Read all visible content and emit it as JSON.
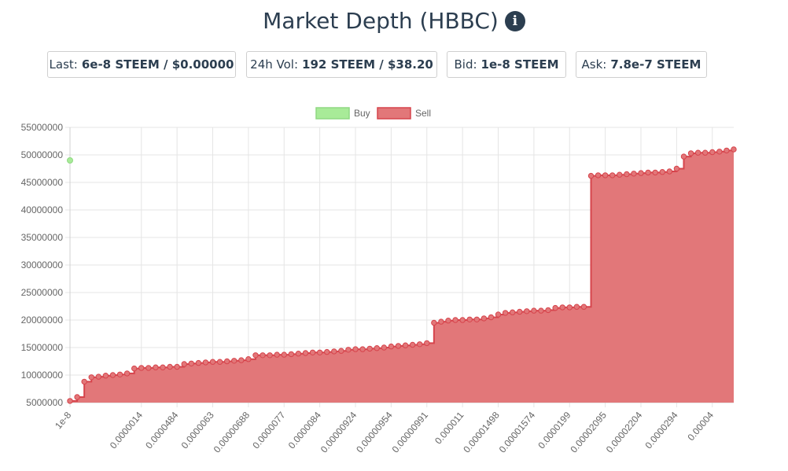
{
  "header": {
    "title": "Market Depth (HBBC)",
    "info_icon": "info-circle-icon"
  },
  "stats": {
    "last": {
      "label": "Last:",
      "value": "6e-8 STEEM / $0.00000"
    },
    "vol": {
      "label": "24h Vol:",
      "value": "192 STEEM / $38.20"
    },
    "bid": {
      "label": "Bid:",
      "value": "1e-8 STEEM"
    },
    "ask": {
      "label": "Ask:",
      "value": "7.8e-7 STEEM"
    }
  },
  "colors": {
    "buy_fill": "#a8eb98",
    "buy_stroke": "#8fd882",
    "sell_fill": "#e27779",
    "sell_stroke": "#d6444c",
    "title": "#2c3e50",
    "grid": "#e5e5e5"
  },
  "chart_data": {
    "type": "area",
    "step": true,
    "legend": {
      "position": "top",
      "entries": [
        "Buy",
        "Sell"
      ]
    },
    "grid": true,
    "ylim": [
      5000000,
      55000000
    ],
    "y_ticks": [
      "55000000",
      "50000000",
      "45000000",
      "40000000",
      "35000000",
      "30000000",
      "25000000",
      "20000000",
      "15000000",
      "10000000",
      "5000000"
    ],
    "x_tick_labels": [
      "1e-8",
      "0.0000014",
      "0.0000484",
      "0.0000063",
      "0.00000688",
      "0.0000077",
      "0.0000084",
      "0.00000924",
      "0.00000954",
      "0.00000991",
      "0.000011",
      "0.00001498",
      "0.00001574",
      "0.0000199",
      "0.00002095",
      "0.00002204",
      "0.0000294",
      "0.00004"
    ],
    "x_tick_index": [
      0,
      10,
      15,
      20,
      25,
      30,
      35,
      40,
      45,
      50,
      55,
      60,
      65,
      70,
      75,
      80,
      85,
      90
    ],
    "series": [
      {
        "name": "Buy",
        "points": [
          [
            0,
            49000000
          ]
        ]
      },
      {
        "name": "Sell",
        "values": [
          5300000,
          6000000,
          8800000,
          9600000,
          9700000,
          9900000,
          10000000,
          10100000,
          10300000,
          11200000,
          11300000,
          11300000,
          11400000,
          11400000,
          11500000,
          11500000,
          12000000,
          12100000,
          12200000,
          12300000,
          12400000,
          12400000,
          12500000,
          12600000,
          12700000,
          12900000,
          13600000,
          13600000,
          13600000,
          13700000,
          13700000,
          13800000,
          13900000,
          14000000,
          14100000,
          14100000,
          14200000,
          14300000,
          14400000,
          14600000,
          14700000,
          14700000,
          14800000,
          14900000,
          15000000,
          15200000,
          15300000,
          15400000,
          15500000,
          15600000,
          15800000,
          19500000,
          19700000,
          19900000,
          20000000,
          20000000,
          20100000,
          20100000,
          20300000,
          20500000,
          21000000,
          21300000,
          21400000,
          21500000,
          21600000,
          21700000,
          21700000,
          21800000,
          22200000,
          22300000,
          22300000,
          22400000,
          22400000,
          46200000,
          46300000,
          46300000,
          46300000,
          46400000,
          46500000,
          46600000,
          46700000,
          46800000,
          46800000,
          46900000,
          47000000,
          47500000,
          49700000,
          50300000,
          50400000,
          50400000,
          50500000,
          50600000,
          50800000,
          51000000
        ]
      }
    ]
  }
}
